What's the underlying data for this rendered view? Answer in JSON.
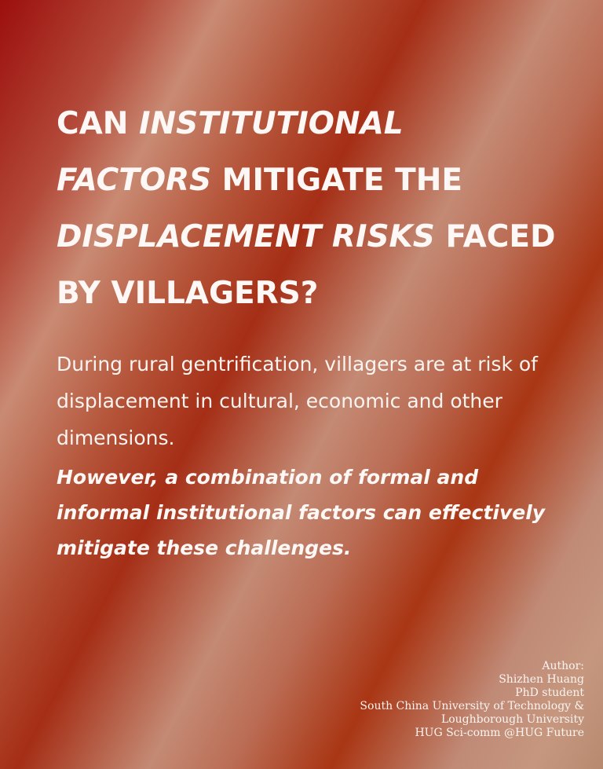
{
  "title": {
    "segments": [
      {
        "text": "CAN ",
        "italic": false
      },
      {
        "text": "INSTITUTIONAL FACTORS",
        "italic": true
      },
      {
        "text": " MITIGATE THE ",
        "italic": false
      },
      {
        "text": "DISPLACEMENT RISKS",
        "italic": true
      },
      {
        "text": " FACED BY VILLAGERS?",
        "italic": false
      }
    ]
  },
  "intro": "During rural gentrification, villagers are at risk of displacement in cultural, economic and other dimensions.",
  "conclusion": "However, a combination of formal and informal institutional factors can effectively mitigate these challenges.",
  "credits": {
    "label": "Author:",
    "name": "Shizhen Huang",
    "role": "PhD student",
    "affiliation_line1": "South China University of Technology &",
    "affiliation_line2": "Loughborough University",
    "project": "HUG Sci-comm @HUG Future"
  },
  "colors": {
    "background_dark_red": "#9c0f0c",
    "background_light": "#c98a73",
    "text": "#fdf8f5"
  }
}
